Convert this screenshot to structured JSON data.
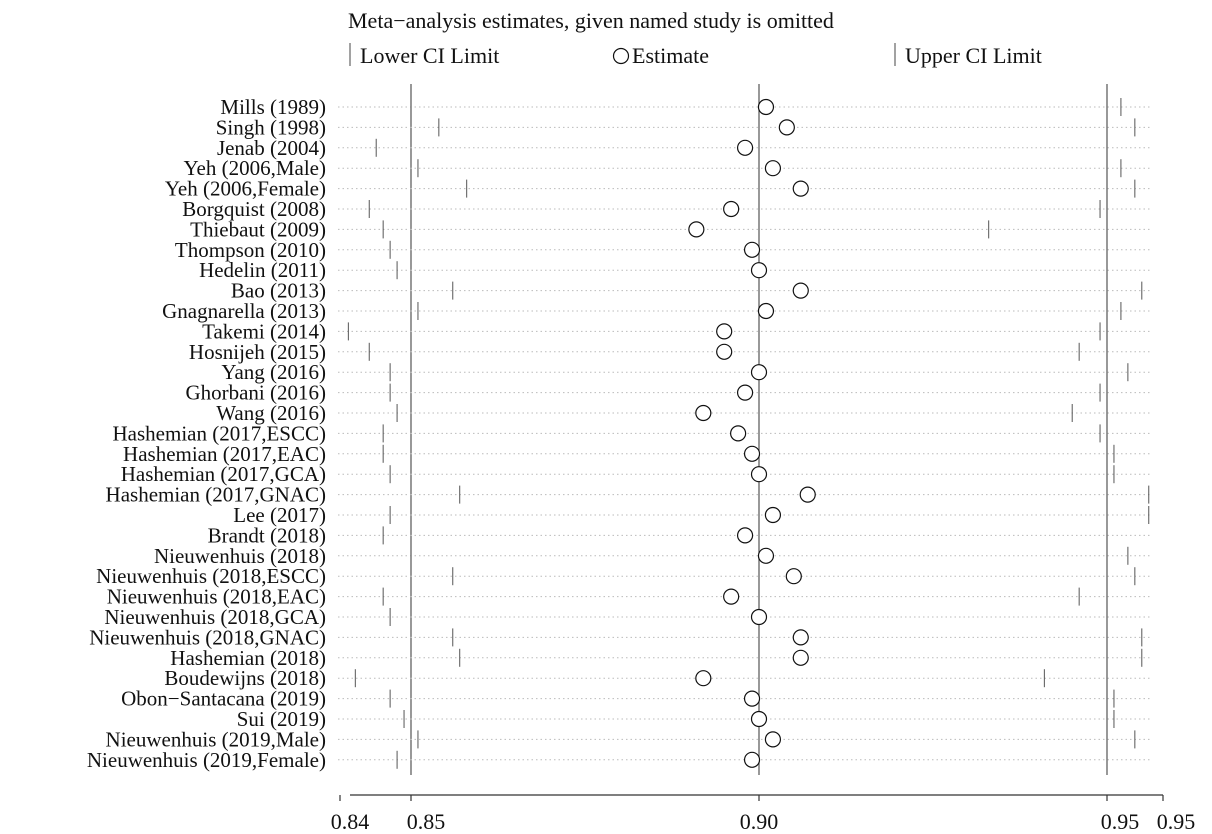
{
  "chart_data": {
    "type": "scatter",
    "title": "Meta−analysis estimates, given named study is omitted",
    "legend": {
      "placement": "top",
      "lower_label": "Lower CI Limit",
      "estimate_label": "Estimate",
      "upper_label": "Upper CI Limit"
    },
    "x_ticks": [
      "0.84",
      "0.85",
      "0.90",
      "0.95",
      "0.95"
    ],
    "reference_lines": [
      0.85,
      0.9,
      0.95
    ],
    "xlim": [
      0.84,
      0.96
    ],
    "grid": "dotted horizontal row guides",
    "studies": [
      {
        "name": "Mills (1989)",
        "lower": 0.85,
        "estimate": 0.901,
        "upper": 0.952
      },
      {
        "name": "Singh (1998)",
        "lower": 0.854,
        "estimate": 0.904,
        "upper": 0.954
      },
      {
        "name": "Jenab (2004)",
        "lower": 0.845,
        "estimate": 0.898,
        "upper": 0.95
      },
      {
        "name": "Yeh (2006,Male)",
        "lower": 0.851,
        "estimate": 0.902,
        "upper": 0.952
      },
      {
        "name": "Yeh (2006,Female)",
        "lower": 0.858,
        "estimate": 0.906,
        "upper": 0.954
      },
      {
        "name": "Borgquist (2008)",
        "lower": 0.844,
        "estimate": 0.896,
        "upper": 0.949
      },
      {
        "name": "Thiebaut (2009)",
        "lower": 0.846,
        "estimate": 0.891,
        "upper": 0.933
      },
      {
        "name": "Thompson (2010)",
        "lower": 0.847,
        "estimate": 0.899,
        "upper": 0.95
      },
      {
        "name": "Hedelin (2011)",
        "lower": 0.848,
        "estimate": 0.9,
        "upper": 0.95
      },
      {
        "name": "Bao (2013)",
        "lower": 0.856,
        "estimate": 0.906,
        "upper": 0.955
      },
      {
        "name": "Gnagnarella (2013)",
        "lower": 0.851,
        "estimate": 0.901,
        "upper": 0.952
      },
      {
        "name": "Takemi (2014)",
        "lower": 0.841,
        "estimate": 0.895,
        "upper": 0.949
      },
      {
        "name": "Hosnijeh (2015)",
        "lower": 0.844,
        "estimate": 0.895,
        "upper": 0.946
      },
      {
        "name": "Yang (2016)",
        "lower": 0.847,
        "estimate": 0.9,
        "upper": 0.953
      },
      {
        "name": "Ghorbani (2016)",
        "lower": 0.847,
        "estimate": 0.898,
        "upper": 0.949
      },
      {
        "name": "Wang (2016)",
        "lower": 0.848,
        "estimate": 0.892,
        "upper": 0.945
      },
      {
        "name": "Hashemian (2017,ESCC)",
        "lower": 0.846,
        "estimate": 0.897,
        "upper": 0.949
      },
      {
        "name": "Hashemian (2017,EAC)",
        "lower": 0.846,
        "estimate": 0.899,
        "upper": 0.951
      },
      {
        "name": "Hashemian (2017,GCA)",
        "lower": 0.847,
        "estimate": 0.9,
        "upper": 0.951
      },
      {
        "name": "Hashemian (2017,GNAC)",
        "lower": 0.857,
        "estimate": 0.907,
        "upper": 0.956
      },
      {
        "name": "Lee (2017)",
        "lower": 0.847,
        "estimate": 0.902,
        "upper": 0.956
      },
      {
        "name": "Brandt (2018)",
        "lower": 0.846,
        "estimate": 0.898,
        "upper": 0.95
      },
      {
        "name": "Nieuwenhuis (2018)",
        "lower": 0.85,
        "estimate": 0.901,
        "upper": 0.953
      },
      {
        "name": "Nieuwenhuis (2018,ESCC)",
        "lower": 0.856,
        "estimate": 0.905,
        "upper": 0.954
      },
      {
        "name": "Nieuwenhuis (2018,EAC)",
        "lower": 0.846,
        "estimate": 0.896,
        "upper": 0.946
      },
      {
        "name": "Nieuwenhuis (2018,GCA)",
        "lower": 0.847,
        "estimate": 0.9,
        "upper": 0.95
      },
      {
        "name": "Nieuwenhuis (2018,GNAC)",
        "lower": 0.856,
        "estimate": 0.906,
        "upper": 0.955
      },
      {
        "name": "Hashemian (2018)",
        "lower": 0.857,
        "estimate": 0.906,
        "upper": 0.955
      },
      {
        "name": "Boudewijns (2018)",
        "lower": 0.842,
        "estimate": 0.892,
        "upper": 0.941
      },
      {
        "name": "Obon−Santacana (2019)",
        "lower": 0.847,
        "estimate": 0.899,
        "upper": 0.951
      },
      {
        "name": "Sui (2019)",
        "lower": 0.849,
        "estimate": 0.9,
        "upper": 0.951
      },
      {
        "name": "Nieuwenhuis (2019,Male)",
        "lower": 0.851,
        "estimate": 0.902,
        "upper": 0.954
      },
      {
        "name": "Nieuwenhuis (2019,Female)",
        "lower": 0.848,
        "estimate": 0.899,
        "upper": 0.95
      }
    ]
  }
}
